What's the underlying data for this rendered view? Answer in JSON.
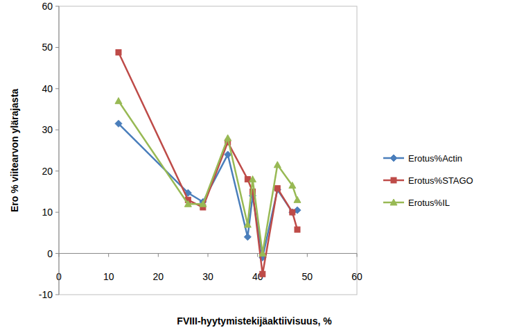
{
  "chart_data": {
    "type": "line",
    "x_label": "FVIII-hyytymistekijäaktiivisuus, %",
    "y_label": "Ero % viitearvon ylärajasta",
    "x": [
      12,
      26,
      29,
      34,
      38,
      39,
      41,
      44,
      47,
      48
    ],
    "series": [
      {
        "name": "Erotus%Actin",
        "color": "#4a7ebb",
        "marker": "diamond",
        "values": [
          31.5,
          14.7,
          12.5,
          24,
          4,
          14,
          -1,
          15.5,
          10,
          10.5
        ]
      },
      {
        "name": "Erotus%STAGO",
        "color": "#be4b48",
        "marker": "square",
        "values": [
          48.8,
          13,
          11.2,
          27,
          18,
          15,
          -5,
          15.8,
          10,
          5.8
        ]
      },
      {
        "name": "Erotus%IL",
        "color": "#98b954",
        "marker": "triangle",
        "values": [
          37,
          12,
          12,
          28,
          7,
          18,
          0,
          21.5,
          16.5,
          13
        ]
      }
    ],
    "xlim": [
      0,
      60
    ],
    "xticks": [
      0,
      10,
      20,
      30,
      40,
      50,
      60
    ],
    "ylim": [
      -10,
      60
    ],
    "yticks": [
      -10,
      0,
      10,
      20,
      30,
      40,
      50,
      60
    ],
    "grid": false,
    "legend": "right"
  }
}
